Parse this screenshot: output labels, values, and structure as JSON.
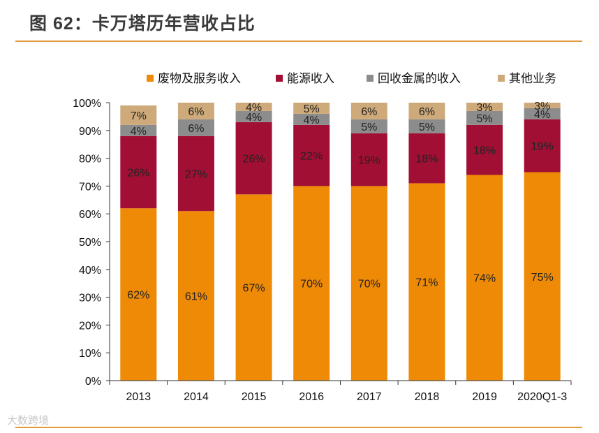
{
  "figure_title": "图 62：卡万塔历年营收占比",
  "watermark": "大数跨境",
  "colors": {
    "废物及服务收入": "#ee8a05",
    "能源收入": "#a20f34",
    "回收金属的收入": "#8c8c8c",
    "其他业务": "#ceaa7a",
    "rule": "#e39b3c"
  },
  "chart_data": {
    "type": "bar",
    "stacked": true,
    "title": "",
    "xlabel": "",
    "ylabel": "",
    "ylim": [
      0,
      100
    ],
    "y_ticks": [
      0,
      10,
      20,
      30,
      40,
      50,
      60,
      70,
      80,
      90,
      100
    ],
    "y_tick_labels": [
      "0%",
      "10%",
      "20%",
      "30%",
      "40%",
      "50%",
      "60%",
      "70%",
      "80%",
      "90%",
      "100%"
    ],
    "categories": [
      "2013",
      "2014",
      "2015",
      "2016",
      "2017",
      "2018",
      "2019",
      "2020Q1-3"
    ],
    "legend_position": "top",
    "series": [
      {
        "name": "废物及服务收入",
        "values": [
          62,
          61,
          67,
          70,
          70,
          71,
          74,
          75
        ],
        "labels": [
          "62%",
          "61%",
          "67%",
          "70%",
          "70%",
          "71%",
          "74%",
          "75%"
        ]
      },
      {
        "name": "能源收入",
        "values": [
          26,
          27,
          26,
          22,
          19,
          18,
          18,
          19
        ],
        "labels": [
          "26%",
          "27%",
          "26%",
          "22%",
          "19%",
          "18%",
          "18%",
          "19%"
        ]
      },
      {
        "name": "回收金属的收入",
        "values": [
          4,
          6,
          4,
          4,
          5,
          5,
          5,
          4
        ],
        "labels": [
          "4%",
          "6%",
          "4%",
          "4%",
          "5%",
          "5%",
          "5%",
          "4%"
        ]
      },
      {
        "name": "其他业务",
        "values": [
          7,
          6,
          4,
          5,
          6,
          6,
          3,
          3
        ],
        "labels": [
          "7%",
          "6%",
          "4%",
          "5%",
          "6%",
          "6%",
          "3%",
          "3%"
        ]
      }
    ]
  }
}
